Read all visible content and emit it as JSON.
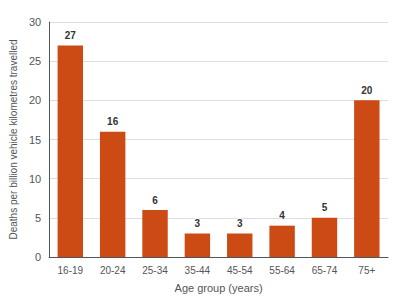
{
  "chart_data": {
    "type": "bar",
    "categories": [
      "16-19",
      "20-24",
      "25-34",
      "35-44",
      "45-54",
      "55-64",
      "65-74",
      "75+"
    ],
    "values": [
      27,
      16,
      6,
      3,
      3,
      4,
      5,
      20
    ],
    "color": "#cc4a14",
    "xlabel": "Age group (years)",
    "ylabel": "Deaths per billion vehicle kilometres travelled",
    "ylim": [
      0,
      30
    ],
    "yticks": [
      0,
      5,
      10,
      15,
      20,
      25,
      30
    ],
    "grid": true,
    "data_labels": true
  }
}
